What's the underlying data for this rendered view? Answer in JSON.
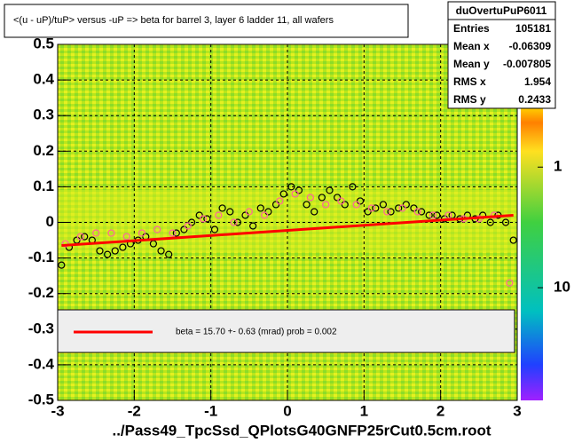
{
  "chart_data": {
    "type": "scatter",
    "title": "<(u - uP)/tuP> versus  -uP => beta for barrel 3, layer 6 ladder 11, all wafers",
    "x_label": "../Pass49_TpcSsd_QPlotsG40GNFP25rCut0.5cm.root",
    "xlim": [
      -3,
      3
    ],
    "xticks": [
      -3,
      -2,
      -1,
      0,
      1,
      2,
      3
    ],
    "ylim": [
      -0.5,
      0.5
    ],
    "yticks": [
      -0.5,
      -0.4,
      -0.3,
      -0.2,
      -0.1,
      0,
      0.1,
      0.2,
      0.3,
      0.4,
      0.5
    ],
    "grid": true,
    "zlim": [
      0.096,
      86
    ],
    "zlog": true,
    "zticks": [
      1,
      10
    ],
    "series": [
      {
        "color": "#000000",
        "marker": "circle",
        "x": [
          -2.95,
          -2.85,
          -2.75,
          -2.65,
          -2.55,
          -2.45,
          -2.35,
          -2.25,
          -2.15,
          -2.05,
          -1.95,
          -1.85,
          -1.75,
          -1.65,
          -1.55,
          -1.45,
          -1.35,
          -1.25,
          -1.15,
          -1.05,
          -0.95,
          -0.85,
          -0.75,
          -0.65,
          -0.55,
          -0.45,
          -0.35,
          -0.25,
          -0.15,
          -0.05,
          0.05,
          0.15,
          0.25,
          0.35,
          0.45,
          0.55,
          0.65,
          0.75,
          0.85,
          0.95,
          1.05,
          1.15,
          1.25,
          1.35,
          1.45,
          1.55,
          1.65,
          1.75,
          1.85,
          1.95,
          2.05,
          2.15,
          2.25,
          2.35,
          2.45,
          2.55,
          2.65,
          2.75,
          2.85,
          2.95
        ],
        "values": [
          -0.12,
          -0.07,
          -0.05,
          -0.04,
          -0.05,
          -0.08,
          -0.09,
          -0.08,
          -0.07,
          -0.06,
          -0.05,
          -0.04,
          -0.06,
          -0.08,
          -0.09,
          -0.03,
          -0.02,
          0.0,
          0.02,
          0.01,
          -0.02,
          0.04,
          0.03,
          0.0,
          0.02,
          -0.01,
          0.04,
          0.03,
          0.05,
          0.08,
          0.1,
          0.09,
          0.05,
          0.03,
          0.07,
          0.09,
          0.07,
          0.05,
          0.1,
          0.06,
          0.03,
          0.04,
          0.05,
          0.03,
          0.04,
          0.05,
          0.04,
          0.03,
          0.02,
          0.02,
          0.01,
          0.02,
          0.01,
          0.02,
          0.01,
          0.02,
          0.0,
          0.02,
          0.0,
          -0.05
        ]
      },
      {
        "color": "#ff6699",
        "marker": "circle",
        "x": [
          -2.9,
          -2.7,
          -2.5,
          -2.3,
          -2.1,
          -1.9,
          -1.7,
          -1.5,
          -1.3,
          -1.1,
          -0.9,
          -0.7,
          -0.5,
          -0.3,
          -0.1,
          0.1,
          0.3,
          0.5,
          0.7,
          0.9,
          1.1,
          1.3,
          1.5,
          1.7,
          1.9,
          2.1,
          2.3,
          2.5,
          2.7,
          2.9
        ],
        "values": [
          -0.06,
          -0.04,
          -0.03,
          -0.03,
          -0.04,
          -0.03,
          -0.02,
          -0.03,
          -0.01,
          0.01,
          0.02,
          0.0,
          0.03,
          0.02,
          0.06,
          0.08,
          0.07,
          0.05,
          0.06,
          0.05,
          0.04,
          0.03,
          0.04,
          0.03,
          0.02,
          0.02,
          0.01,
          0.01,
          0.02,
          -0.17
        ]
      },
      {
        "name": "beta =    15.70 +-  0.63 (mrad) prob = 0.002",
        "color": "#ff0000",
        "marker": "line",
        "x": [
          -2.95,
          2.95
        ],
        "values": [
          -0.065,
          0.02
        ]
      }
    ],
    "stats": {
      "title": "duOvertuPuP6011",
      "rows": [
        [
          "Entries",
          105181
        ],
        [
          "Mean x",
          -0.06309
        ],
        [
          "Mean y",
          -0.007805
        ],
        [
          "RMS x",
          1.954
        ],
        [
          "RMS y",
          0.2433
        ]
      ]
    }
  }
}
